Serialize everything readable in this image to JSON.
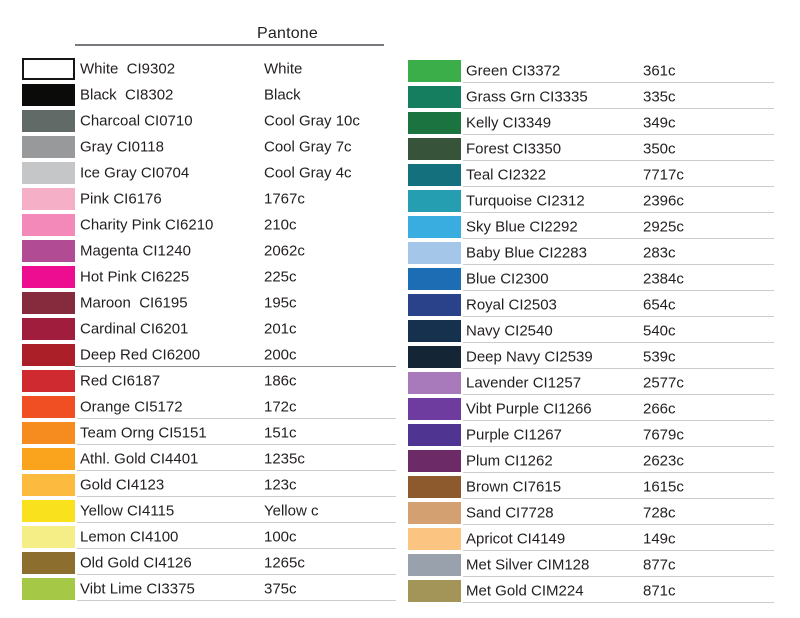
{
  "header": {
    "pantone_label": "Pantone"
  },
  "left": {
    "rows": [
      {
        "label": "White  CI9302",
        "pantone": "White",
        "color": "#ffffff",
        "border": true,
        "underline": false
      },
      {
        "label": "Black  CI8302",
        "pantone": "Black",
        "color": "#0b0c0a",
        "border": false,
        "underline": false
      },
      {
        "label": "Charcoal CI0710",
        "pantone": "Cool Gray 10c",
        "color": "#616a67",
        "border": false,
        "underline": false
      },
      {
        "label": "Gray CI0118",
        "pantone": "Cool Gray 7c",
        "color": "#97999b",
        "border": false,
        "underline": false
      },
      {
        "label": "Ice Gray CI0704",
        "pantone": "Cool Gray 4c",
        "color": "#c4c6c8",
        "border": false,
        "underline": false
      },
      {
        "label": "Pink CI6176",
        "pantone": "1767c",
        "color": "#f5afc6",
        "border": false,
        "underline": false
      },
      {
        "label": "Charity Pink CI6210",
        "pantone": "210c",
        "color": "#f289b9",
        "border": false,
        "underline": false
      },
      {
        "label": "Magenta CI1240",
        "pantone": "2062c",
        "color": "#b04b94",
        "border": false,
        "underline": false
      },
      {
        "label": "Hot Pink CI6225",
        "pantone": "225c",
        "color": "#ed0d90",
        "border": false,
        "underline": false
      },
      {
        "label": "Maroon  CI6195",
        "pantone": "195c",
        "color": "#862a3e",
        "border": false,
        "underline": false
      },
      {
        "label": "Cardinal CI6201",
        "pantone": "201c",
        "color": "#a01d3e",
        "border": false,
        "underline": false
      },
      {
        "label": "Deep Red CI6200",
        "pantone": "200c",
        "color": "#ab1f28",
        "border": false,
        "underline": "strong"
      },
      {
        "label": "Red CI6187",
        "pantone": "186c",
        "color": "#ce2a30",
        "border": false,
        "underline": false
      },
      {
        "label": "Orange CI5172",
        "pantone": "172c",
        "color": "#f04e23",
        "border": false,
        "underline": true
      },
      {
        "label": "Team Orng CI5151",
        "pantone": "151c",
        "color": "#f68b1f",
        "border": false,
        "underline": true
      },
      {
        "label": "Athl. Gold CI4401",
        "pantone": "1235c",
        "color": "#faa41d",
        "border": false,
        "underline": true
      },
      {
        "label": "Gold CI4123",
        "pantone": "123c",
        "color": "#fcba3f",
        "border": false,
        "underline": true
      },
      {
        "label": "Yellow CI4115",
        "pantone": "Yellow c",
        "color": "#f9e11e",
        "border": false,
        "underline": true
      },
      {
        "label": "Lemon CI4100",
        "pantone": "100c",
        "color": "#f5ee87",
        "border": false,
        "underline": true
      },
      {
        "label": "Old Gold CI4126",
        "pantone": "1265c",
        "color": "#8c6e2e",
        "border": false,
        "underline": true
      },
      {
        "label": "Vibt Lime CI3375",
        "pantone": "375c",
        "color": "#a5c946",
        "border": false,
        "underline": true
      }
    ]
  },
  "right": {
    "rows": [
      {
        "label": "Green CI3372",
        "pantone": "361c",
        "color": "#3bad49",
        "border": false,
        "underline": true
      },
      {
        "label": "Grass Grn CI3335",
        "pantone": "335c",
        "color": "#157e5e",
        "border": false,
        "underline": true
      },
      {
        "label": "Kelly CI3349",
        "pantone": "349c",
        "color": "#1b7340",
        "border": false,
        "underline": true
      },
      {
        "label": "Forest CI3350",
        "pantone": "350c",
        "color": "#375339",
        "border": false,
        "underline": true
      },
      {
        "label": "Teal CI2322",
        "pantone": "7717c",
        "color": "#15707e",
        "border": false,
        "underline": true
      },
      {
        "label": "Turquoise CI2312",
        "pantone": "2396c",
        "color": "#269eb2",
        "border": false,
        "underline": true
      },
      {
        "label": "Sky Blue CI2292",
        "pantone": "2925c",
        "color": "#39ade0",
        "border": false,
        "underline": true
      },
      {
        "label": "Baby Blue CI2283",
        "pantone": "283c",
        "color": "#a4c6e9",
        "border": false,
        "underline": true
      },
      {
        "label": "Blue CI2300",
        "pantone": "2384c",
        "color": "#1d6db5",
        "border": false,
        "underline": true
      },
      {
        "label": "Royal CI2503",
        "pantone": "654c",
        "color": "#2a4289",
        "border": false,
        "underline": true
      },
      {
        "label": "Navy CI2540",
        "pantone": "540c",
        "color": "#16314e",
        "border": false,
        "underline": true
      },
      {
        "label": "Deep Navy CI2539",
        "pantone": "539c",
        "color": "#142536",
        "border": false,
        "underline": true
      },
      {
        "label": "Lavender CI1257",
        "pantone": "2577c",
        "color": "#a87abc",
        "border": false,
        "underline": true
      },
      {
        "label": "Vibt Purple CI1266",
        "pantone": "266c",
        "color": "#6e3b9e",
        "border": false,
        "underline": true
      },
      {
        "label": "Purple CI1267",
        "pantone": "7679c",
        "color": "#4f3591",
        "border": false,
        "underline": true
      },
      {
        "label": "Plum CI1262",
        "pantone": "2623c",
        "color": "#6c2a67",
        "border": false,
        "underline": true
      },
      {
        "label": "Brown CI7615",
        "pantone": "1615c",
        "color": "#8d5a2e",
        "border": false,
        "underline": true
      },
      {
        "label": "Sand CI7728",
        "pantone": "728c",
        "color": "#d3a171",
        "border": false,
        "underline": true
      },
      {
        "label": "Apricot CI4149",
        "pantone": "149c",
        "color": "#fbc480",
        "border": false,
        "underline": true
      },
      {
        "label": "Met Silver CIM128",
        "pantone": "877c",
        "color": "#98a1ac",
        "border": false,
        "underline": true
      },
      {
        "label": "Met Gold CIM224",
        "pantone": "871c",
        "color": "#a39457",
        "border": false,
        "underline": true
      }
    ]
  }
}
